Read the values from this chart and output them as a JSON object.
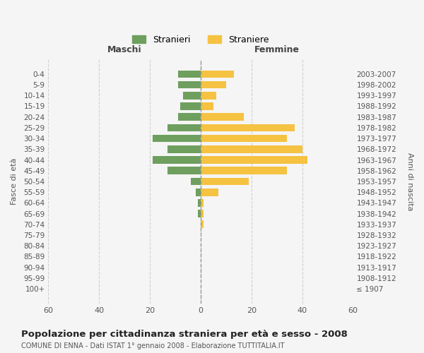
{
  "age_groups": [
    "100+",
    "95-99",
    "90-94",
    "85-89",
    "80-84",
    "75-79",
    "70-74",
    "65-69",
    "60-64",
    "55-59",
    "50-54",
    "45-49",
    "40-44",
    "35-39",
    "30-34",
    "25-29",
    "20-24",
    "15-19",
    "10-14",
    "5-9",
    "0-4"
  ],
  "birth_years": [
    "≤ 1907",
    "1908-1912",
    "1913-1917",
    "1918-1922",
    "1923-1927",
    "1928-1932",
    "1933-1937",
    "1938-1942",
    "1943-1947",
    "1948-1952",
    "1953-1957",
    "1958-1962",
    "1963-1967",
    "1968-1972",
    "1973-1977",
    "1978-1982",
    "1983-1987",
    "1988-1992",
    "1993-1997",
    "1998-2002",
    "2003-2007"
  ],
  "maschi": [
    0,
    0,
    0,
    0,
    0,
    0,
    0,
    1,
    1,
    2,
    4,
    13,
    19,
    13,
    19,
    13,
    9,
    8,
    7,
    9,
    9
  ],
  "femmine": [
    0,
    0,
    0,
    0,
    0,
    0,
    1,
    1,
    1,
    7,
    19,
    34,
    42,
    40,
    34,
    37,
    17,
    5,
    6,
    10,
    13
  ],
  "color_maschi": "#6e9f5e",
  "color_femmine": "#f5c242",
  "title": "Popolazione per cittadinanza straniera per età e sesso - 2008",
  "subtitle": "COMUNE DI ENNA - Dati ISTAT 1° gennaio 2008 - Elaborazione TUTTITALIA.IT",
  "xlabel_left": "Maschi",
  "xlabel_right": "Femmine",
  "ylabel_left": "Fasce di età",
  "ylabel_right": "Anni di nascita",
  "xmin": -60,
  "xmax": 60,
  "legend_stranieri": "Stranieri",
  "legend_straniere": "Straniere",
  "bg_color": "#f5f5f5",
  "grid_color": "#cccccc"
}
